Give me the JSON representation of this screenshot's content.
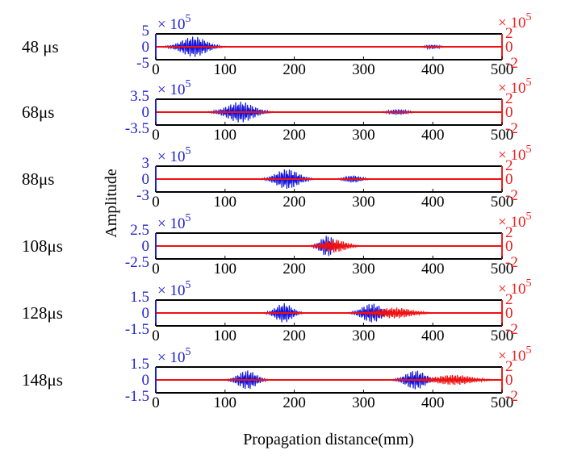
{
  "figure": {
    "xlabel": "Propagation distance(mm)",
    "ylabel": "Amplitude",
    "colors": {
      "left_axis": "#1f1fd1",
      "right_axis": "#ee2020",
      "blue_series": "#1515dd",
      "red_series": "#f01010"
    }
  },
  "chart_data": [
    {
      "type": "line",
      "label": "48 μs",
      "xlim": [
        0,
        500
      ],
      "xticks": [
        "0",
        "100",
        "200",
        "300",
        "400",
        "500"
      ],
      "left_axis": {
        "multiplier": "× 10",
        "exponent": "5",
        "range": [
          -5,
          5
        ],
        "ticks": [
          "5",
          "0",
          "-5"
        ]
      },
      "right_axis": {
        "multiplier": "× 10",
        "exponent": "5",
        "range": [
          -2,
          2
        ],
        "ticks": [
          "2",
          "0",
          "-2"
        ]
      },
      "series": [
        {
          "axis": "left",
          "packets": [
            {
              "center": 55,
              "width": 45,
              "amp": 4.2
            },
            {
              "center": 400,
              "width": 22,
              "amp": 0.9
            }
          ]
        },
        {
          "axis": "right",
          "packets": []
        }
      ]
    },
    {
      "type": "line",
      "label": "68μs",
      "xlim": [
        0,
        500
      ],
      "xticks": [
        "0",
        "100",
        "200",
        "300",
        "400",
        "500"
      ],
      "left_axis": {
        "multiplier": "× 10",
        "exponent": "5",
        "range": [
          -3.5,
          3.5
        ],
        "ticks": [
          "3.5",
          "0",
          "-3.5"
        ]
      },
      "right_axis": {
        "multiplier": "× 10",
        "exponent": "5",
        "range": [
          -2,
          2
        ],
        "ticks": [
          "2",
          "0",
          "-2"
        ]
      },
      "series": [
        {
          "axis": "left",
          "packets": [
            {
              "center": 122,
              "width": 48,
              "amp": 3.0
            },
            {
              "center": 350,
              "width": 30,
              "amp": 0.8
            }
          ]
        },
        {
          "axis": "right",
          "packets": []
        }
      ]
    },
    {
      "type": "line",
      "label": "88μs",
      "xlim": [
        0,
        500
      ],
      "xticks": [
        "0",
        "100",
        "200",
        "300",
        "400",
        "500"
      ],
      "left_axis": {
        "multiplier": "× 10",
        "exponent": "5",
        "range": [
          -3,
          3
        ],
        "ticks": [
          "3",
          "0",
          "-3"
        ]
      },
      "right_axis": {
        "multiplier": "× 10",
        "exponent": "5",
        "range": [
          -2,
          2
        ],
        "ticks": [
          "2",
          "0",
          "-2"
        ]
      },
      "series": [
        {
          "axis": "left",
          "packets": [
            {
              "center": 190,
              "width": 40,
              "amp": 2.5
            },
            {
              "center": 285,
              "width": 28,
              "amp": 0.9
            }
          ]
        },
        {
          "axis": "right",
          "packets": []
        }
      ]
    },
    {
      "type": "line",
      "label": "108μs",
      "xlim": [
        0,
        500
      ],
      "xticks": [
        "0",
        "100",
        "200",
        "300",
        "400",
        "500"
      ],
      "left_axis": {
        "multiplier": "× 10",
        "exponent": "5",
        "range": [
          -2.5,
          2.5
        ],
        "ticks": [
          "2.5",
          "0",
          "-2.5"
        ]
      },
      "right_axis": {
        "multiplier": "× 10",
        "exponent": "5",
        "range": [
          -2,
          2
        ],
        "ticks": [
          "2",
          "0",
          "-2"
        ]
      },
      "series": [
        {
          "axis": "left",
          "packets": [
            {
              "center": 248,
              "width": 25,
              "amp": 2.2
            }
          ]
        },
        {
          "axis": "right",
          "packets": [
            {
              "center": 258,
              "width": 40,
              "amp": 1.1
            }
          ]
        }
      ]
    },
    {
      "type": "line",
      "label": "128μs",
      "xlim": [
        0,
        500
      ],
      "xticks": [
        "0",
        "100",
        "200",
        "300",
        "400",
        "500"
      ],
      "left_axis": {
        "multiplier": "× 10",
        "exponent": "5",
        "range": [
          -1.5,
          1.5
        ],
        "ticks": [
          "1.5",
          "0",
          "-1.5"
        ]
      },
      "right_axis": {
        "multiplier": "× 10",
        "exponent": "5",
        "range": [
          -2,
          2
        ],
        "ticks": [
          "2",
          "0",
          "-2"
        ]
      },
      "series": [
        {
          "axis": "left",
          "packets": [
            {
              "center": 185,
              "width": 30,
              "amp": 1.2
            },
            {
              "center": 312,
              "width": 35,
              "amp": 1.2
            }
          ]
        },
        {
          "axis": "right",
          "packets": [
            {
              "center": 345,
              "width": 60,
              "amp": 0.9
            }
          ]
        }
      ]
    },
    {
      "type": "line",
      "label": "148μs",
      "xlim": [
        0,
        500
      ],
      "xticks": [
        "0",
        "100",
        "200",
        "300",
        "400",
        "500"
      ],
      "left_axis": {
        "multiplier": "× 10",
        "exponent": "5",
        "range": [
          -1.5,
          1.5
        ],
        "ticks": [
          "1.5",
          "0",
          "-1.5"
        ]
      },
      "right_axis": {
        "multiplier": "× 10",
        "exponent": "5",
        "range": [
          -2,
          2
        ],
        "ticks": [
          "2",
          "0",
          "-2"
        ]
      },
      "series": [
        {
          "axis": "left",
          "packets": [
            {
              "center": 132,
              "width": 32,
              "amp": 1.2
            },
            {
              "center": 375,
              "width": 35,
              "amp": 1.2
            }
          ]
        },
        {
          "axis": "right",
          "packets": [
            {
              "center": 430,
              "width": 65,
              "amp": 0.85
            }
          ]
        }
      ]
    }
  ]
}
